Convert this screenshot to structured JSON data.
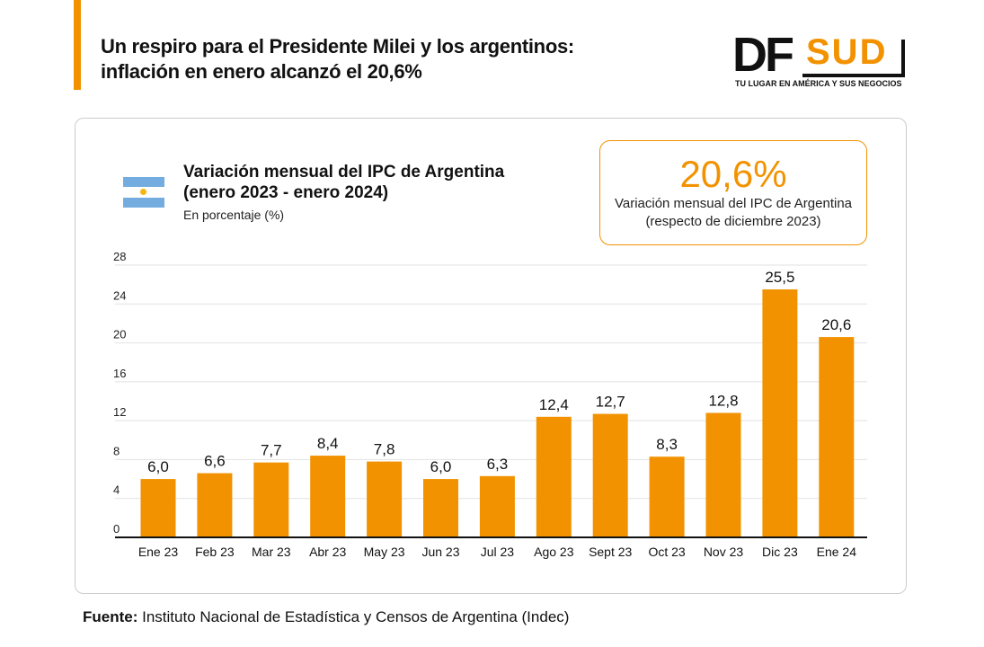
{
  "headline": {
    "line1": "Un respiro para el Presidente Milei y los argentinos:",
    "line2": "inflación en enero alcanzó el 20,6%"
  },
  "logo": {
    "text1": "DF",
    "text2": "SUD",
    "tagline": "TU LUGAR EN AMÉRICA Y SUS NEGOCIOS"
  },
  "colors": {
    "accent": "#f29200",
    "flag_blue": "#74acdf"
  },
  "kpi": {
    "value": "20,6%",
    "line1": "Variación mensual del IPC de Argentina",
    "line2": "(respecto de diciembre 2023)"
  },
  "chart_data": {
    "type": "bar",
    "title": "Variación mensual del IPC de Argentina",
    "title2": "(enero 2023 - enero 2024)",
    "subtitle": "En porcentaje (%)",
    "categories": [
      "Ene 23",
      "Feb 23",
      "Mar 23",
      "Abr 23",
      "May 23",
      "Jun 23",
      "Jul 23",
      "Ago 23",
      "Sept 23",
      "Oct 23",
      "Nov 23",
      "Dic 23",
      "Ene 24"
    ],
    "values": [
      6.0,
      6.6,
      7.7,
      8.4,
      7.8,
      6.0,
      6.3,
      12.4,
      12.7,
      8.3,
      12.8,
      25.5,
      20.6
    ],
    "labels": [
      "6,0",
      "6,6",
      "7,7",
      "8,4",
      "7,8",
      "6,0",
      "6,3",
      "12,4",
      "12,7",
      "8,3",
      "12,8",
      "25,5",
      "20,6"
    ],
    "yticks": [
      "0",
      "4",
      "8",
      "12",
      "16",
      "20",
      "24",
      "28"
    ],
    "ylim": [
      0,
      28
    ],
    "grid": true,
    "bar_color": "#f29200"
  },
  "source": {
    "label": "Fuente:",
    "text": " Instituto Nacional de Estadística y Censos de Argentina (Indec)"
  }
}
